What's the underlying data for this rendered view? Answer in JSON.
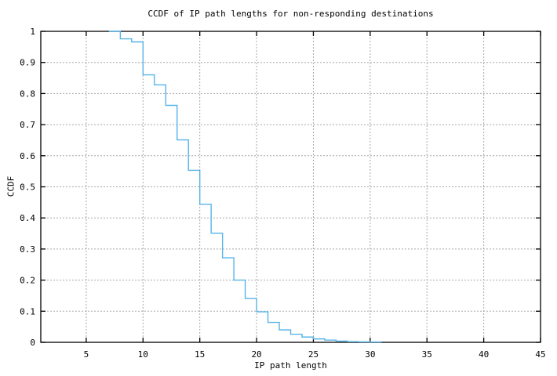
{
  "page": {
    "background": "#ffffff"
  },
  "chart_data": {
    "type": "line",
    "style": "steps",
    "title": "CCDF of IP path lengths for non-responding destinations",
    "xlabel": "IP path length",
    "ylabel": "CCDF",
    "xlim": [
      1,
      45
    ],
    "ylim": [
      0,
      1
    ],
    "xticks": [
      5,
      10,
      15,
      20,
      25,
      30,
      35,
      40,
      45
    ],
    "xtick_labels": [
      "5",
      "10",
      "15",
      "20",
      "25",
      "30",
      "35",
      "40",
      "45"
    ],
    "yticks": [
      0,
      0.1,
      0.2,
      0.3,
      0.4,
      0.5,
      0.6,
      0.7,
      0.8,
      0.9,
      1
    ],
    "ytick_labels": [
      "0",
      "0.1",
      "0.2",
      "0.3",
      "0.4",
      "0.5",
      "0.6",
      "0.7",
      "0.8",
      "0.9",
      "1"
    ],
    "grid": true,
    "legend": "none",
    "line_color": "#56b4e9",
    "grid_color": "#a8a8a8",
    "axis_color": "#000000",
    "series": [
      {
        "name": "ccdf",
        "x": [
          7,
          8,
          9,
          10,
          11,
          12,
          13,
          14,
          15,
          16,
          17,
          18,
          19,
          20,
          21,
          22,
          23,
          24,
          25,
          26,
          27,
          28,
          29,
          30,
          31
        ],
        "y": [
          1.0,
          0.976,
          0.966,
          0.86,
          0.828,
          0.762,
          0.651,
          0.553,
          0.444,
          0.351,
          0.272,
          0.2,
          0.141,
          0.098,
          0.064,
          0.04,
          0.026,
          0.017,
          0.011,
          0.007,
          0.004,
          0.002,
          0.0015,
          0.001,
          0.0005
        ]
      }
    ]
  }
}
